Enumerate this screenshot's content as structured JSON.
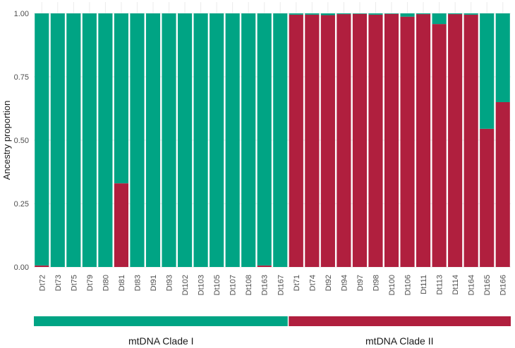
{
  "chart_data": {
    "type": "bar",
    "stacked": true,
    "ylabel": "Ancestry proportion",
    "xlabel": "",
    "ylim": [
      0,
      1
    ],
    "yticks": [
      "0.00",
      "0.25",
      "0.50",
      "0.75",
      "1.00"
    ],
    "grid": true,
    "categories": [
      "Dt72",
      "Dt73",
      "Dt75",
      "Dt79",
      "Dt80",
      "Dt81",
      "Dt83",
      "Dt91",
      "Dt93",
      "Dt102",
      "Dt103",
      "Dt105",
      "Dt107",
      "Dt108",
      "Dt163",
      "Dt167",
      "Dt71",
      "Dt74",
      "Dt92",
      "Dt94",
      "Dt97",
      "Dt98",
      "Dt100",
      "Dt106",
      "Dt111",
      "Dt113",
      "Dt114",
      "Dt164",
      "Dt165",
      "Dt166"
    ],
    "series": [
      {
        "color": "#B01F3E",
        "values": [
          0.006,
          0,
          0,
          0,
          0,
          0.33,
          0,
          0,
          0,
          0,
          0,
          0,
          0,
          0,
          0.006,
          0,
          0.995,
          0.995,
          0.993,
          0.997,
          0.998,
          0.995,
          0.998,
          0.987,
          0.997,
          0.958,
          0.997,
          0.995,
          0.545,
          0.65
        ]
      },
      {
        "color": "#00A484",
        "values": [
          0.994,
          1,
          1,
          1,
          1,
          0.67,
          1,
          1,
          1,
          1,
          1,
          1,
          1,
          1,
          0.994,
          1,
          0.005,
          0.005,
          0.007,
          0.003,
          0.002,
          0.005,
          0.002,
          0.013,
          0.003,
          0.042,
          0.003,
          0.005,
          0.455,
          0.35
        ]
      }
    ],
    "groups": [
      {
        "label": "mtDNA Clade I",
        "start": 0,
        "end": 15,
        "color": "#00A484"
      },
      {
        "label": "mtDNA Clade II",
        "start": 16,
        "end": 29,
        "color": "#B01F3E"
      }
    ]
  }
}
